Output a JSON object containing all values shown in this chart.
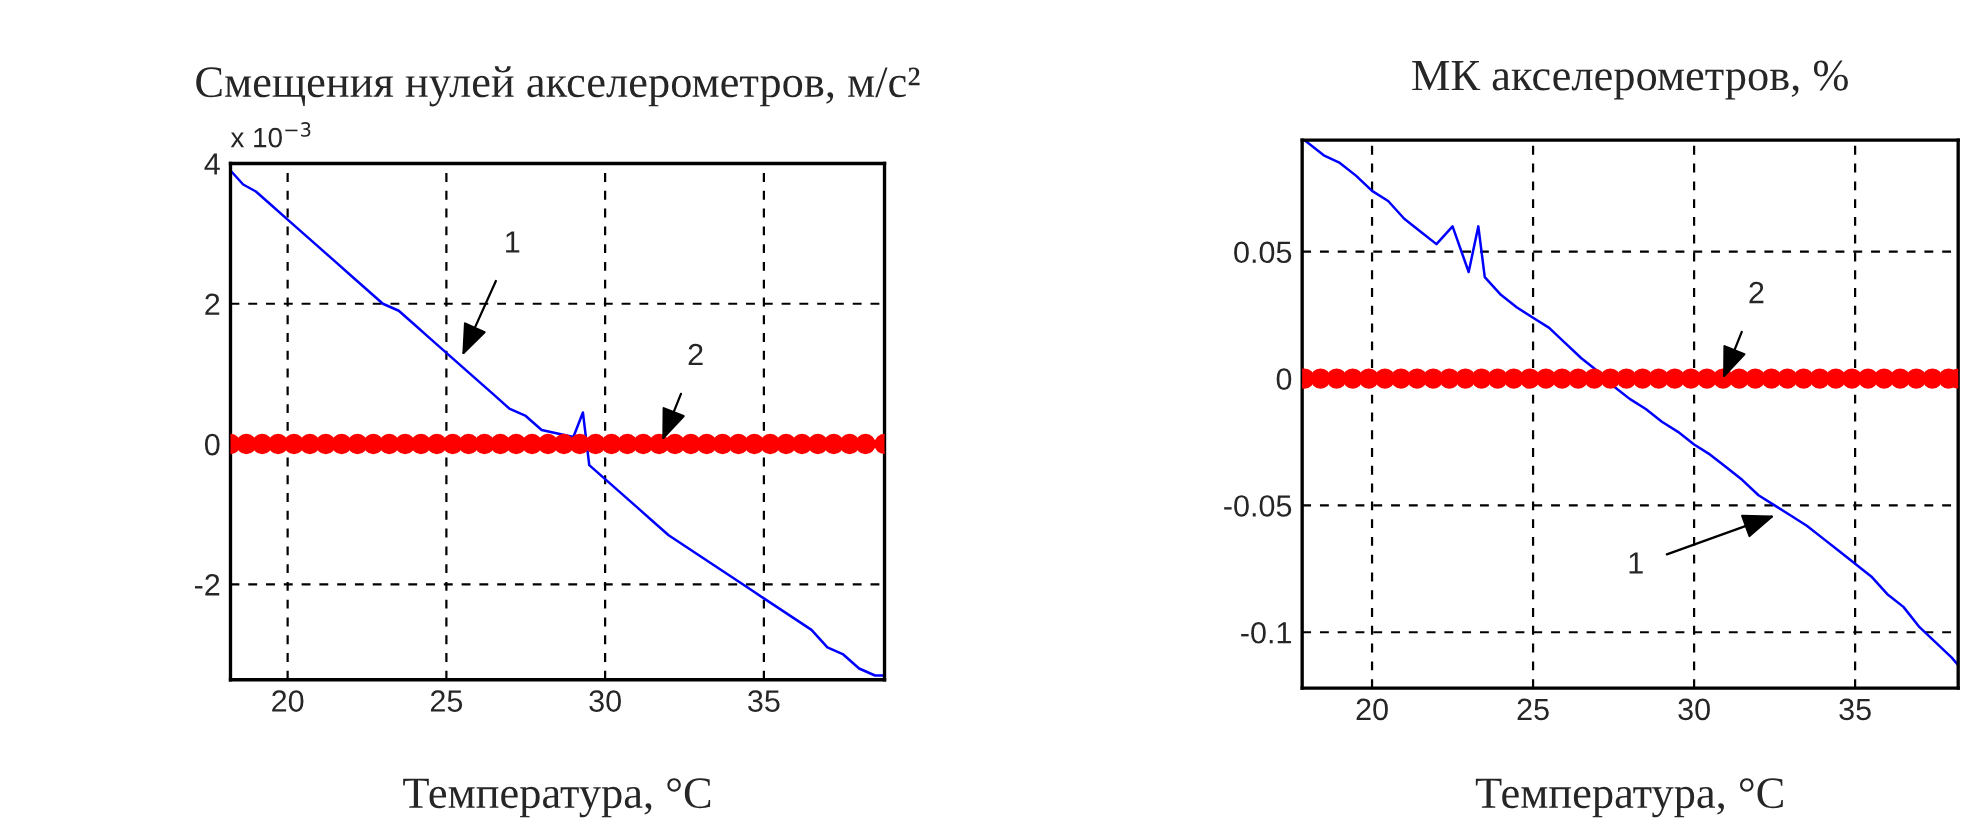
{
  "chart_data": [
    {
      "type": "line",
      "title": "Смещения нулей акселерометров, м/с²",
      "xlabel": "Температура, °C",
      "xlim": [
        18.2,
        38.8
      ],
      "ylim": [
        -3.36,
        4
      ],
      "xticks": [
        20,
        25,
        30,
        35
      ],
      "yticks": [
        -2,
        0,
        2,
        4
      ],
      "grid": true,
      "annotations": [
        "x 10$^{−3}$",
        {
          "text": "1",
          "x": 25.5,
          "y": 1.26
        },
        {
          "text": "2",
          "x": 31.8,
          "y": 0.05
        }
      ],
      "series": [
        {
          "color": "#0000ff",
          "marker": "none",
          "x": [
            18.2,
            18.6,
            19,
            19.5,
            20,
            20.5,
            21,
            21.5,
            22,
            22.5,
            23,
            23.5,
            24,
            24.5,
            25,
            25.5,
            26,
            26.5,
            27,
            27.5,
            28,
            28.5,
            29,
            29.3,
            29.5,
            30,
            30.5,
            31,
            31.5,
            32,
            32.5,
            33,
            33.5,
            34,
            34.5,
            35,
            35.5,
            36,
            36.5,
            37,
            37.5,
            38,
            38.5,
            38.8
          ],
          "values": [
            3.9,
            3.7,
            3.6,
            3.4,
            3.2,
            3.0,
            2.8,
            2.6,
            2.4,
            2.2,
            2.0,
            1.9,
            1.7,
            1.5,
            1.3,
            1.1,
            0.9,
            0.7,
            0.5,
            0.4,
            0.2,
            0.15,
            0.1,
            0.45,
            -0.3,
            -0.5,
            -0.7,
            -0.9,
            -1.1,
            -1.3,
            -1.45,
            -1.6,
            -1.75,
            -1.9,
            -2.05,
            -2.2,
            -2.35,
            -2.5,
            -2.65,
            -2.9,
            -3.0,
            -3.2,
            -3.3,
            -3.3
          ]
        },
        {
          "type": "scatter",
          "color": "#ff0000",
          "marker": "circle",
          "x": [
            18.2,
            18.7,
            19.2,
            19.7,
            20.2,
            20.7,
            21.2,
            21.7,
            22.2,
            22.7,
            23.2,
            23.7,
            24.2,
            24.7,
            25.2,
            25.7,
            26.2,
            26.7,
            27.2,
            27.7,
            28.2,
            28.7,
            29.2,
            29.7,
            30.2,
            30.7,
            31.2,
            31.7,
            32.2,
            32.7,
            33.2,
            33.7,
            34.2,
            34.7,
            35.2,
            35.7,
            36.2,
            36.7,
            37.2,
            37.7,
            38.2,
            38.8
          ],
          "values": [
            0,
            0,
            0,
            0,
            0,
            0,
            0,
            0,
            0,
            0,
            0,
            0,
            0,
            0,
            0,
            0,
            0,
            0,
            0,
            0,
            0,
            0,
            0,
            0,
            0,
            0,
            0,
            0,
            0,
            0,
            0,
            0,
            0,
            0,
            0,
            0,
            0,
            0,
            0,
            0,
            0,
            0
          ]
        }
      ]
    },
    {
      "type": "line",
      "title": "МК акселерометров, %",
      "xlabel": "Температура, °C",
      "xlim": [
        17.83,
        38.2
      ],
      "ylim": [
        -0.122,
        0.094
      ],
      "xticks": [
        20,
        25,
        30,
        35
      ],
      "yticks": [
        -0.1,
        -0.05,
        0,
        0.05
      ],
      "grid": true,
      "annotations": [
        {
          "text": "2",
          "x": 30.9,
          "y": 0
        },
        {
          "text": "1",
          "x": 32.5,
          "y": -0.054
        }
      ],
      "series": [
        {
          "color": "#0000ff",
          "marker": "none",
          "x": [
            17.9,
            18.5,
            19,
            19.5,
            20,
            20.5,
            21,
            21.5,
            22,
            22.5,
            23,
            23.3,
            23.5,
            24,
            24.5,
            25,
            25.5,
            26,
            26.5,
            27,
            27.5,
            28,
            28.5,
            29,
            29.5,
            30,
            30.5,
            31,
            31.5,
            32,
            32.5,
            33,
            33.5,
            34,
            34.5,
            35,
            35.5,
            36,
            36.5,
            37,
            37.5,
            38,
            38.2
          ],
          "values": [
            0.094,
            0.088,
            0.085,
            0.08,
            0.074,
            0.07,
            0.063,
            0.058,
            0.053,
            0.06,
            0.042,
            0.06,
            0.04,
            0.033,
            0.028,
            0.024,
            0.02,
            0.014,
            0.008,
            0.003,
            -0.003,
            -0.008,
            -0.012,
            -0.017,
            -0.021,
            -0.026,
            -0.03,
            -0.035,
            -0.04,
            -0.046,
            -0.05,
            -0.054,
            -0.058,
            -0.063,
            -0.068,
            -0.073,
            -0.078,
            -0.085,
            -0.09,
            -0.098,
            -0.104,
            -0.11,
            -0.113
          ]
        },
        {
          "type": "scatter",
          "color": "#ff0000",
          "marker": "circle",
          "x": [
            17.9,
            18.4,
            18.9,
            19.4,
            19.9,
            20.4,
            20.9,
            21.4,
            21.9,
            22.4,
            22.9,
            23.4,
            23.9,
            24.4,
            24.9,
            25.4,
            25.9,
            26.4,
            26.9,
            27.4,
            27.9,
            28.4,
            28.9,
            29.4,
            29.9,
            30.4,
            30.9,
            31.4,
            31.9,
            32.4,
            32.9,
            33.4,
            33.9,
            34.4,
            34.9,
            35.4,
            35.9,
            36.4,
            36.9,
            37.4,
            37.9,
            38.2
          ],
          "values": [
            0,
            0,
            0,
            0,
            0,
            0,
            0,
            0,
            0,
            0,
            0,
            0,
            0,
            0,
            0,
            0,
            0,
            0,
            0,
            0,
            0,
            0,
            0,
            0,
            0,
            0,
            0,
            0,
            0,
            0,
            0,
            0,
            0,
            0,
            0,
            0,
            0,
            0,
            0,
            0,
            0,
            0
          ]
        }
      ]
    }
  ]
}
